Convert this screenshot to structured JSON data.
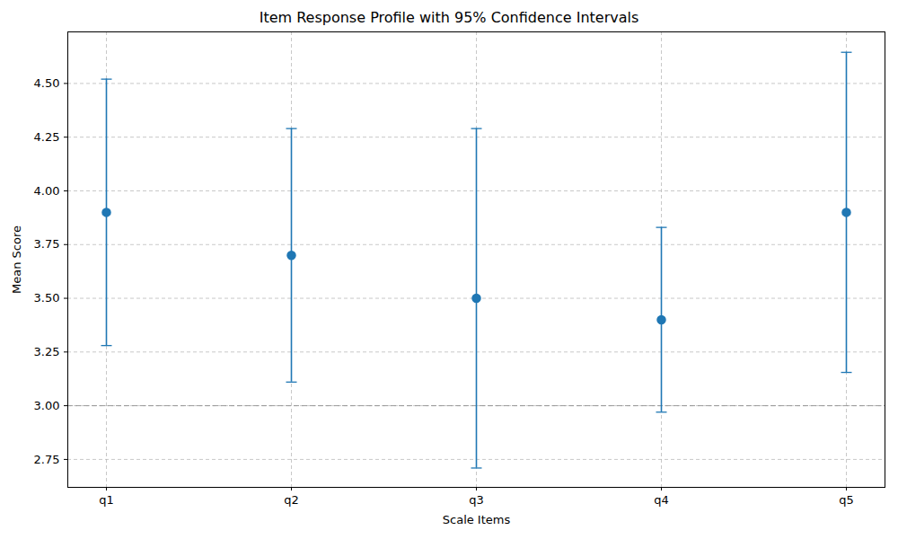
{
  "chart_data": {
    "type": "errorbar",
    "title": "Item Response Profile with 95% Confidence Intervals",
    "x_label": "Scale Items",
    "y_label": "Mean Score",
    "categories": [
      "q1",
      "q2",
      "q3",
      "q4",
      "q5"
    ],
    "values": [
      3.9,
      3.7,
      3.5,
      3.4,
      3.9
    ],
    "ci_lower": [
      3.28,
      3.11,
      2.71,
      2.97,
      3.155
    ],
    "ci_upper": [
      4.52,
      4.29,
      4.29,
      3.83,
      4.645
    ],
    "color": "#1f77b4",
    "marker": "circle",
    "reference_line": 3,
    "ylim": [
      2.62,
      4.74
    ],
    "yticks": [
      2.75,
      {
        "value": 3,
        "label": "3.00"
      },
      3.25,
      {
        "value": 3.5,
        "label": "3.50"
      },
      3.75,
      {
        "value": 4,
        "label": "4.00"
      },
      4.25,
      {
        "value": 4.5,
        "label": "4.50"
      }
    ],
    "grid": true
  }
}
